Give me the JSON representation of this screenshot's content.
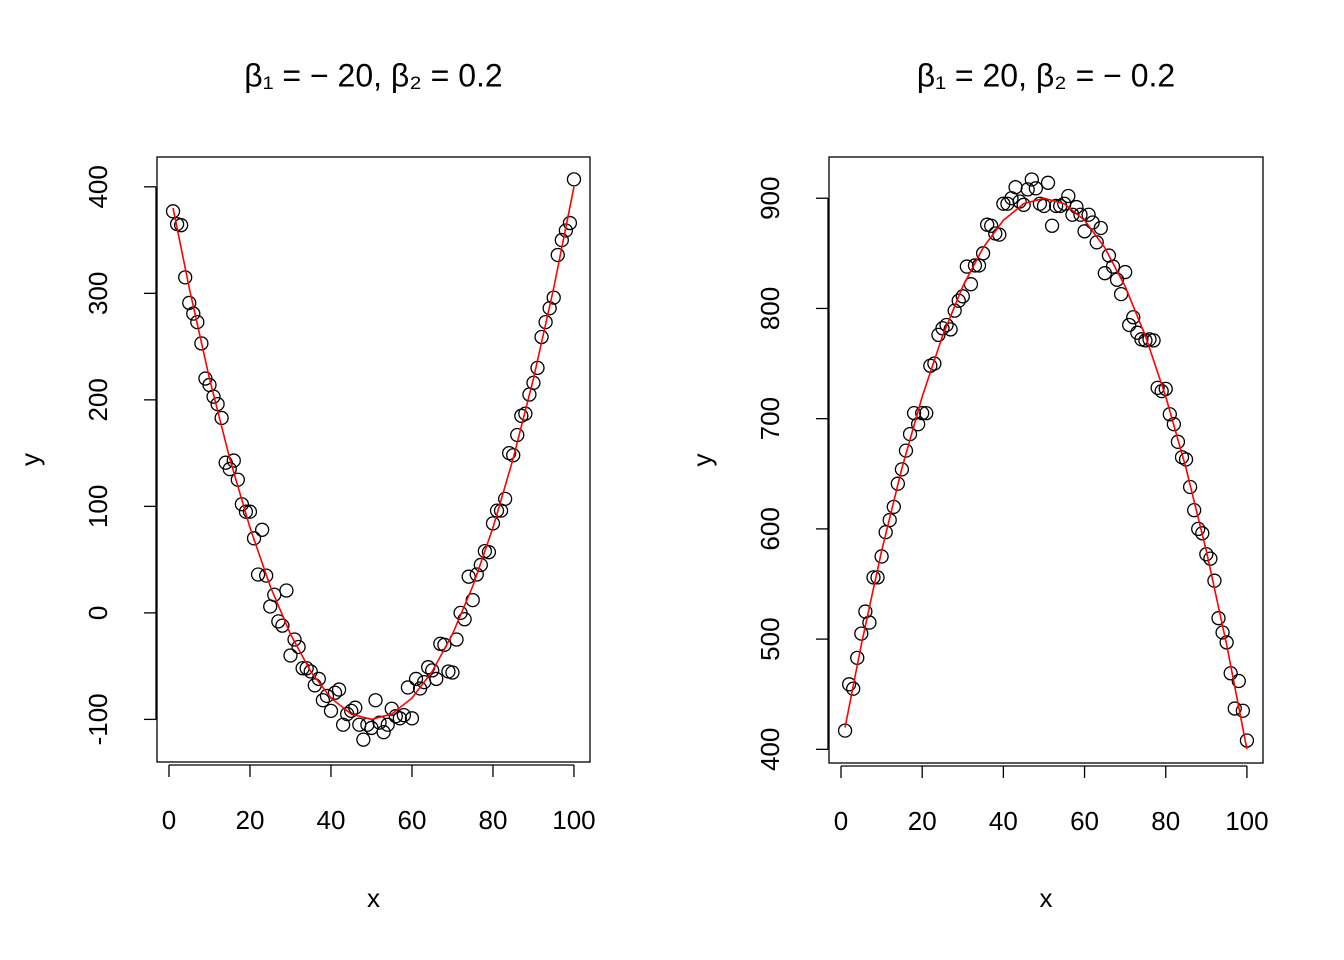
{
  "chart_data": [
    {
      "type": "scatter",
      "title": "β₁ = − 20, β₂ = 0.2",
      "x_label": "x",
      "y_label": "y",
      "xlim": [
        -2.96,
        103.96
      ],
      "ylim": [
        -140,
        428
      ],
      "xticks": [
        0,
        20,
        40,
        60,
        80,
        100
      ],
      "yticks": [
        -100,
        0,
        100,
        200,
        300,
        400
      ],
      "series": [
        {
          "color": "#000000",
          "marker": "open-circle",
          "x": [
            1,
            2,
            3,
            4,
            5,
            6,
            7,
            8,
            9,
            10,
            11,
            12,
            13,
            14,
            15,
            16,
            17,
            18,
            19,
            20,
            21,
            22,
            23,
            24,
            25,
            26,
            27,
            28,
            29,
            30,
            31,
            32,
            33,
            34,
            35,
            36,
            37,
            38,
            39,
            40,
            41,
            42,
            43,
            44,
            45,
            46,
            47,
            48,
            49,
            50,
            51,
            52,
            53,
            54,
            55,
            56,
            57,
            58,
            59,
            60,
            61,
            62,
            63,
            64,
            65,
            66,
            67,
            68,
            69,
            70,
            71,
            72,
            73,
            74,
            75,
            76,
            77,
            78,
            79,
            80,
            81,
            82,
            83,
            84,
            85,
            86,
            87,
            88,
            89,
            90,
            91,
            92,
            93,
            94,
            95,
            96,
            97,
            98,
            99,
            100
          ],
          "values": [
            377,
            365,
            364,
            315,
            291,
            281,
            273,
            253,
            220,
            214,
            203,
            196,
            183,
            141,
            135,
            143,
            125,
            102,
            95,
            95,
            70,
            36,
            78,
            35,
            6,
            17,
            -8,
            -12,
            21,
            -40,
            -25,
            -32,
            -52,
            -52,
            -55,
            -68,
            -62,
            -82,
            -78,
            -92,
            -75,
            -72,
            -105,
            -95,
            -92,
            -89,
            -105,
            -119,
            -105,
            -108,
            -82,
            -103,
            -112,
            -105,
            -90,
            -97,
            -99,
            -96,
            -70,
            -99,
            -62,
            -71,
            -65,
            -51,
            -54,
            -62,
            -29,
            -30,
            -55,
            -56,
            -25,
            0,
            -6,
            34,
            12,
            36,
            45,
            58,
            57,
            84,
            96,
            96,
            107,
            150,
            148,
            167,
            185,
            187,
            205,
            216,
            230,
            259,
            273,
            286,
            296,
            336,
            350,
            359,
            366,
            407
          ]
        },
        {
          "color": "#ff0000",
          "marker": "line",
          "x": [
            1,
            5,
            10,
            15,
            20,
            25,
            30,
            35,
            40,
            45,
            50,
            55,
            60,
            65,
            70,
            75,
            80,
            85,
            90,
            95,
            100
          ],
          "values": [
            380.2,
            305,
            220,
            145,
            80,
            25,
            -20,
            -55,
            -80,
            -95,
            -100,
            -95,
            -80,
            -55,
            -20,
            25,
            80,
            145,
            220,
            305,
            400
          ]
        }
      ]
    },
    {
      "type": "scatter",
      "title": "β₁ = 20, β₂ = − 0.2",
      "x_label": "x",
      "y_label": "y",
      "xlim": [
        -2.96,
        103.96
      ],
      "ylim": [
        387.6,
        937.4
      ],
      "xticks": [
        0,
        20,
        40,
        60,
        80,
        100
      ],
      "yticks": [
        400,
        500,
        600,
        700,
        800,
        900
      ],
      "series": [
        {
          "color": "#000000",
          "marker": "open-circle",
          "x": [
            1,
            2,
            3,
            4,
            5,
            6,
            7,
            8,
            9,
            10,
            11,
            12,
            13,
            14,
            15,
            16,
            17,
            18,
            19,
            20,
            21,
            22,
            23,
            24,
            25,
            26,
            27,
            28,
            29,
            30,
            31,
            32,
            33,
            34,
            35,
            36,
            37,
            38,
            39,
            40,
            41,
            42,
            43,
            44,
            45,
            46,
            47,
            48,
            49,
            50,
            51,
            52,
            53,
            54,
            55,
            56,
            57,
            58,
            59,
            60,
            61,
            62,
            63,
            64,
            65,
            66,
            67,
            68,
            69,
            70,
            71,
            72,
            73,
            74,
            75,
            76,
            77,
            78,
            79,
            80,
            81,
            82,
            83,
            84,
            85,
            86,
            87,
            88,
            89,
            90,
            91,
            92,
            93,
            94,
            95,
            96,
            97,
            98,
            99,
            100
          ],
          "values": [
            417,
            459,
            455,
            483,
            505,
            525,
            515,
            556,
            556,
            575,
            597,
            608,
            620,
            641,
            654,
            671,
            686,
            705,
            695,
            705,
            705,
            748,
            750,
            776,
            782,
            785,
            781,
            798,
            807,
            811,
            838,
            822,
            839,
            839,
            850,
            876,
            875,
            868,
            867,
            895,
            895,
            900,
            910,
            897,
            894,
            908,
            917,
            909,
            895,
            893,
            914,
            875,
            893,
            893,
            895,
            902,
            885,
            892,
            885,
            870,
            885,
            878,
            860,
            873,
            832,
            848,
            838,
            826,
            813,
            833,
            785,
            792,
            778,
            772,
            771,
            772,
            771,
            728,
            725,
            727,
            704,
            695,
            679,
            665,
            663,
            638,
            617,
            600,
            596,
            577,
            573,
            553,
            519,
            506,
            497,
            469,
            437,
            462,
            435,
            408
          ]
        },
        {
          "color": "#ff0000",
          "marker": "line",
          "x": [
            1,
            5,
            10,
            15,
            20,
            25,
            30,
            35,
            40,
            45,
            50,
            55,
            60,
            65,
            70,
            75,
            80,
            85,
            90,
            95,
            100
          ],
          "values": [
            419.8,
            495,
            580,
            655,
            720,
            775,
            820,
            855,
            880,
            895,
            900,
            895,
            880,
            855,
            820,
            775,
            720,
            655,
            580,
            495,
            400
          ]
        }
      ]
    }
  ]
}
